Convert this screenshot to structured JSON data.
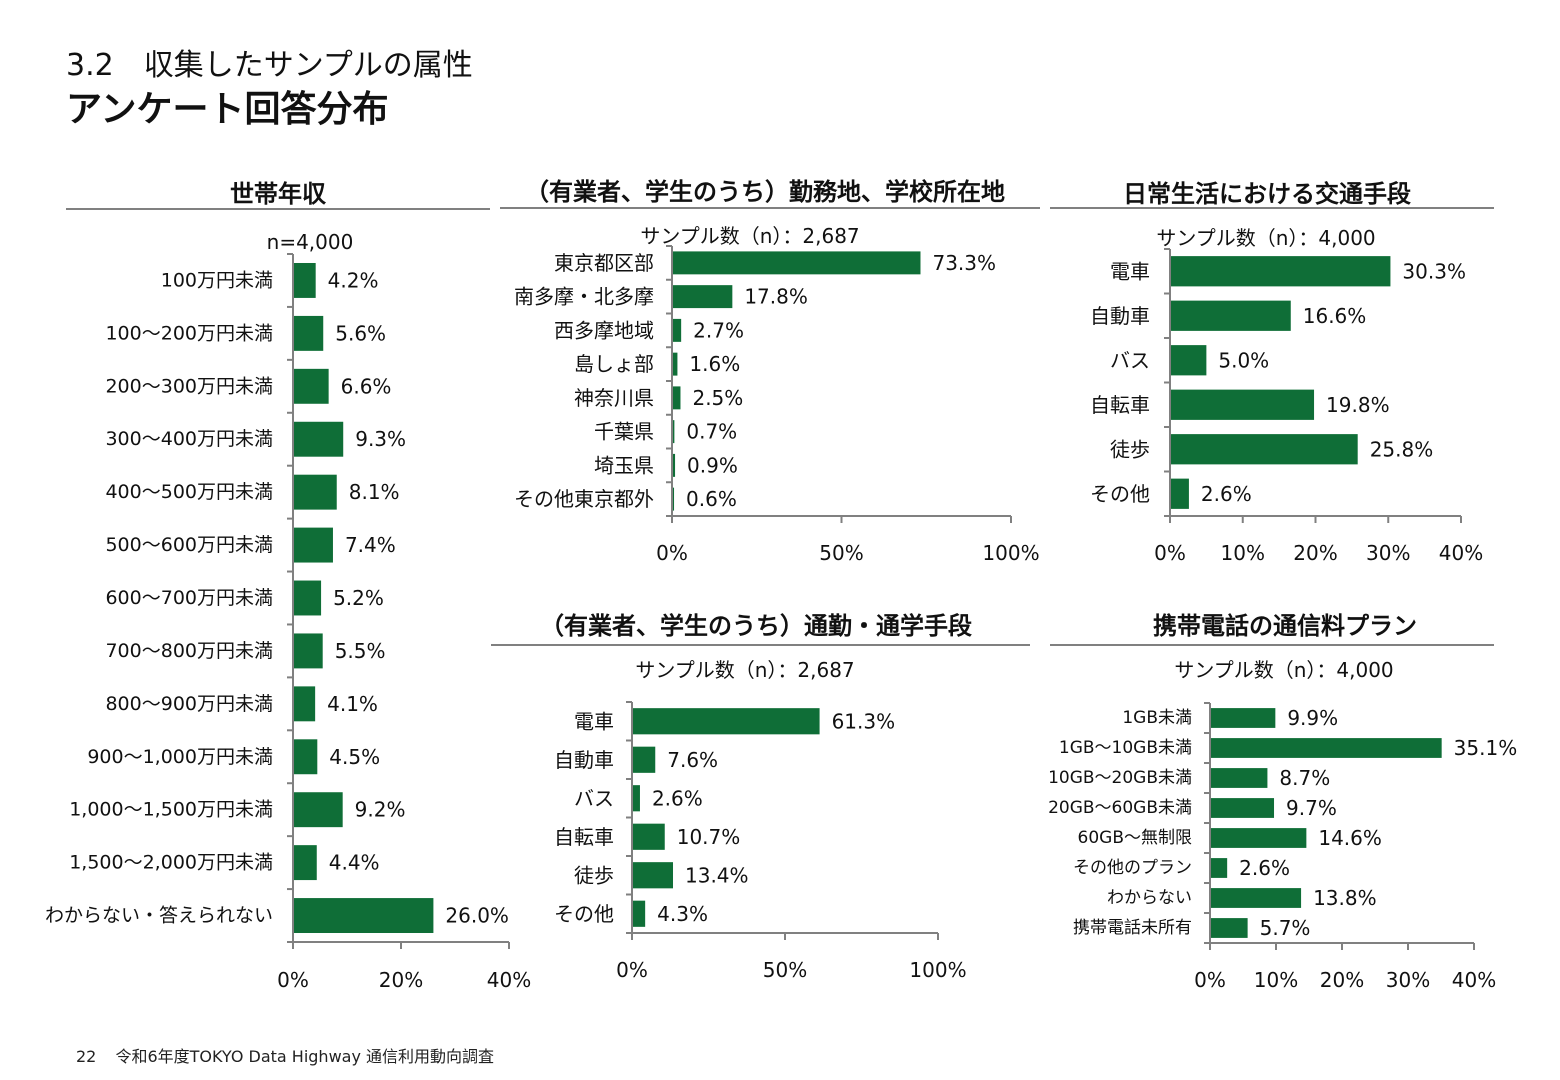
{
  "header": {
    "section": "3.2　収集したサンプルの属性",
    "title": "アンケート回答分布"
  },
  "footer": {
    "page_number": "22",
    "source": "令和6年度TOKYO Data Highway 通信利用動向調査"
  },
  "theme": {
    "bar_color": "#0f6e37",
    "axis_color": "#808080"
  },
  "chart_data": [
    {
      "id": "income",
      "type": "bar",
      "orientation": "horizontal",
      "title": "世帯年収",
      "subtitle": "n=4,000",
      "categories": [
        "100万円未満",
        "100～200万円未満",
        "200～300万円未満",
        "300～400万円未満",
        "400～500万円未満",
        "500～600万円未満",
        "600～700万円未満",
        "700～800万円未満",
        "800～900万円未満",
        "900～1,000万円未満",
        "1,000～1,500万円未満",
        "1,500～2,000万円未満",
        "わからない・答えられない"
      ],
      "values": [
        4.2,
        5.6,
        6.6,
        9.3,
        8.1,
        7.4,
        5.2,
        5.5,
        4.1,
        4.5,
        9.2,
        4.4,
        26.0
      ],
      "value_labels": [
        "4.2%",
        "5.6%",
        "6.6%",
        "9.3%",
        "8.1%",
        "7.4%",
        "5.2%",
        "5.5%",
        "4.1%",
        "4.5%",
        "9.2%",
        "4.4%",
        "26.0%"
      ],
      "xlim": [
        0,
        40
      ],
      "x_ticks": [
        "0%",
        "20%",
        "40%"
      ],
      "grid": false
    },
    {
      "id": "work_location",
      "type": "bar",
      "orientation": "horizontal",
      "title": "（有業者、学生のうち）勤務地、学校所在地",
      "subtitle": "サンプル数（n）：2,687",
      "categories": [
        "東京都区部",
        "南多摩・北多摩",
        "西多摩地域",
        "島しょ部",
        "神奈川県",
        "千葉県",
        "埼玉県",
        "その他東京都外"
      ],
      "values": [
        73.3,
        17.8,
        2.7,
        1.6,
        2.5,
        0.7,
        0.9,
        0.6
      ],
      "value_labels": [
        "73.3%",
        "17.8%",
        "2.7%",
        "1.6%",
        "2.5%",
        "0.7%",
        "0.9%",
        "0.6%"
      ],
      "xlim": [
        0,
        100
      ],
      "x_ticks": [
        "0%",
        "50%",
        "100%"
      ],
      "grid": false
    },
    {
      "id": "daily_transport",
      "type": "bar",
      "orientation": "horizontal",
      "title": "日常生活における交通手段",
      "subtitle": "サンプル数（n）：4,000",
      "categories": [
        "電車",
        "自動車",
        "バス",
        "自転車",
        "徒歩",
        "その他"
      ],
      "values": [
        30.3,
        16.6,
        5.0,
        19.8,
        25.8,
        2.6
      ],
      "value_labels": [
        "30.3%",
        "16.6%",
        "5.0%",
        "19.8%",
        "25.8%",
        "2.6%"
      ],
      "xlim": [
        0,
        40
      ],
      "x_ticks": [
        "0%",
        "10%",
        "20%",
        "30%",
        "40%"
      ],
      "grid": false
    },
    {
      "id": "commute",
      "type": "bar",
      "orientation": "horizontal",
      "title": "（有業者、学生のうち）通勤・通学手段",
      "subtitle": "サンプル数（n）：2,687",
      "categories": [
        "電車",
        "自動車",
        "バス",
        "自転車",
        "徒歩",
        "その他"
      ],
      "values": [
        61.3,
        7.6,
        2.6,
        10.7,
        13.4,
        4.3
      ],
      "value_labels": [
        "61.3%",
        "7.6%",
        "2.6%",
        "10.7%",
        "13.4%",
        "4.3%"
      ],
      "xlim": [
        0,
        100
      ],
      "x_ticks": [
        "0%",
        "50%",
        "100%"
      ],
      "grid": false
    },
    {
      "id": "mobile_plan",
      "type": "bar",
      "orientation": "horizontal",
      "title": "携帯電話の通信料プラン",
      "subtitle": "サンプル数（n）：4,000",
      "categories": [
        "1GB未満",
        "1GB～10GB未満",
        "10GB～20GB未満",
        "20GB～60GB未満",
        "60GB～無制限",
        "その他のプラン",
        "わからない",
        "携帯電話未所有"
      ],
      "values": [
        9.9,
        35.1,
        8.7,
        9.7,
        14.6,
        2.6,
        13.8,
        5.7
      ],
      "value_labels": [
        "9.9%",
        "35.1%",
        "8.7%",
        "9.7%",
        "14.6%",
        "2.6%",
        "13.8%",
        "5.7%"
      ],
      "xlim": [
        0,
        40
      ],
      "x_ticks": [
        "0%",
        "10%",
        "20%",
        "30%",
        "40%"
      ],
      "grid": false
    }
  ]
}
